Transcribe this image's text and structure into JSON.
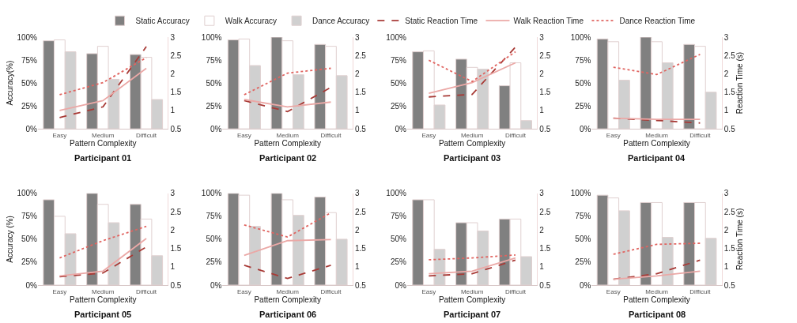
{
  "chart_data": [
    {
      "type": "bar",
      "title": "Participant 01",
      "xlabel": "Pattern Complexity",
      "ylabel": "Accuracy(%)",
      "legend": "top",
      "categories": [
        "Easy",
        "Medium",
        "Difficult"
      ],
      "ylim": [
        0,
        100
      ],
      "yticks": [
        {
          "value": 0,
          "label": "0%"
        },
        {
          "value": 25,
          "label": "25%"
        },
        {
          "value": 50,
          "label": "50%"
        },
        {
          "value": 75,
          "label": "75%"
        },
        {
          "value": 100,
          "label": "100%"
        }
      ],
      "y2lim": [
        0.5,
        3
      ],
      "y2ticks": [
        0.5,
        1,
        1.5,
        2,
        2.5,
        3
      ],
      "series": [
        {
          "name": "Static Accuracy",
          "color": "#808080",
          "values": [
            96,
            82,
            81
          ]
        },
        {
          "name": "Walk Accuracy",
          "color": "#ffffff",
          "values": [
            97,
            90,
            78
          ]
        },
        {
          "name": "Dance Accuracy",
          "color": "#d0d0d0",
          "values": [
            84,
            54,
            32
          ]
        },
        {
          "name": "Static Reaction Time",
          "type": "line",
          "axis": "y2",
          "line_style": "dashed",
          "color": "#a83a36",
          "values": [
            0.81,
            1.1,
            2.74
          ]
        },
        {
          "name": "Walk Reaction Time",
          "type": "line",
          "axis": "y2",
          "line_style": "solid",
          "color": "#eba8a6",
          "values": [
            1.0,
            1.27,
            2.15
          ]
        },
        {
          "name": "Dance Reaction Time",
          "type": "line",
          "axis": "y2",
          "line_style": "dotted",
          "color": "#e06460",
          "values": [
            1.43,
            1.76,
            2.44
          ]
        }
      ]
    },
    {
      "type": "bar",
      "title": "Participant 02",
      "xlabel": "Pattern Complexity",
      "categories": [
        "Easy",
        "Medium",
        "Difficult"
      ],
      "ylim": [
        0,
        100
      ],
      "yticks": [
        {
          "value": 0,
          "label": "0%"
        },
        {
          "value": 25,
          "label": "25%"
        },
        {
          "value": 50,
          "label": "50%"
        },
        {
          "value": 75,
          "label": "75%"
        },
        {
          "value": 100,
          "label": "100%"
        }
      ],
      "y2lim": [
        0.5,
        3
      ],
      "y2ticks": [
        0.5,
        1,
        1.5,
        2,
        2.5,
        3
      ],
      "series": [
        {
          "color": "#808080",
          "values": [
            97,
            100,
            92
          ]
        },
        {
          "color": "#ffffff",
          "values": [
            98,
            96,
            90
          ]
        },
        {
          "color": "#d0d0d0",
          "values": [
            69,
            59,
            58
          ]
        },
        {
          "type": "line",
          "axis": "y2",
          "line_style": "dashed",
          "color": "#a83a36",
          "values": [
            1.27,
            0.97,
            1.63
          ]
        },
        {
          "type": "line",
          "axis": "y2",
          "line_style": "solid",
          "color": "#eba8a6",
          "values": [
            1.3,
            1.1,
            1.23
          ]
        },
        {
          "type": "line",
          "axis": "y2",
          "line_style": "dotted",
          "color": "#e06460",
          "values": [
            1.43,
            2.02,
            2.15
          ]
        }
      ]
    },
    {
      "type": "bar",
      "title": "Participant 03",
      "xlabel": "Pattern Complexity",
      "categories": [
        "Easy",
        "Medium",
        "Difficult"
      ],
      "ylim": [
        0,
        100
      ],
      "yticks": [
        {
          "value": 0,
          "label": "0%"
        },
        {
          "value": 25,
          "label": "25%"
        },
        {
          "value": 50,
          "label": "50%"
        },
        {
          "value": 75,
          "label": "75%"
        },
        {
          "value": 100,
          "label": "100%"
        }
      ],
      "y2lim": [
        0.5,
        3
      ],
      "y2ticks": [
        0.5,
        1,
        1.5,
        2,
        2.5,
        3
      ],
      "series": [
        {
          "color": "#808080",
          "values": [
            84,
            76,
            47
          ]
        },
        {
          "color": "#ffffff",
          "values": [
            85,
            67,
            72
          ]
        },
        {
          "color": "#d0d0d0",
          "values": [
            26,
            65,
            9
          ]
        },
        {
          "type": "line",
          "axis": "y2",
          "line_style": "dashed",
          "color": "#a83a36",
          "values": [
            1.37,
            1.44,
            2.73
          ]
        },
        {
          "type": "line",
          "axis": "y2",
          "line_style": "solid",
          "color": "#eba8a6",
          "values": [
            1.47,
            1.76,
            2.3
          ]
        },
        {
          "type": "line",
          "axis": "y2",
          "line_style": "dotted",
          "color": "#e06460",
          "values": [
            2.37,
            1.79,
            2.6
          ]
        }
      ]
    },
    {
      "type": "bar",
      "title": "Participant 04",
      "xlabel": "Pattern Complexity",
      "y2label": "Reaction Time (s)",
      "categories": [
        "Easy",
        "Medium",
        "Difficult"
      ],
      "ylim": [
        0,
        100
      ],
      "yticks": [
        {
          "value": 0,
          "label": "0%"
        },
        {
          "value": 25,
          "label": "25%"
        },
        {
          "value": 50,
          "label": "50%"
        },
        {
          "value": 75,
          "label": "75%"
        },
        {
          "value": 100,
          "label": "100%"
        }
      ],
      "y2lim": [
        0.5,
        3
      ],
      "y2ticks": [
        0.5,
        1,
        1.5,
        2,
        2.5,
        3
      ],
      "series": [
        {
          "color": "#808080",
          "values": [
            98,
            100,
            92
          ]
        },
        {
          "color": "#ffffff",
          "values": [
            95,
            95,
            90
          ]
        },
        {
          "color": "#d0d0d0",
          "values": [
            53,
            72,
            40
          ]
        },
        {
          "type": "line",
          "axis": "y2",
          "line_style": "dashed",
          "color": "#a83a36",
          "values": [
            0.79,
            0.73,
            0.66
          ]
        },
        {
          "type": "line",
          "axis": "y2",
          "line_style": "solid",
          "color": "#eba8a6",
          "values": [
            0.79,
            0.76,
            0.76
          ]
        },
        {
          "type": "line",
          "axis": "y2",
          "line_style": "dotted",
          "color": "#e06460",
          "values": [
            2.18,
            1.98,
            2.53
          ]
        }
      ]
    },
    {
      "type": "bar",
      "title": "Participant 05",
      "xlabel": "Pattern Complexity",
      "ylabel": "Accuracy (%)",
      "categories": [
        "Easy",
        "Medium",
        "Difficult"
      ],
      "ylim": [
        0,
        100
      ],
      "yticks": [
        {
          "value": 0,
          "label": "0%"
        },
        {
          "value": 25,
          "label": "25%"
        },
        {
          "value": 50,
          "label": "50%"
        },
        {
          "value": 75,
          "label": "75%"
        },
        {
          "value": 100,
          "label": "100%"
        }
      ],
      "y2lim": [
        0.5,
        3
      ],
      "y2ticks": [
        0.5,
        1,
        1.5,
        2,
        2.5,
        3
      ],
      "series": [
        {
          "color": "#808080",
          "values": [
            93,
            100,
            88
          ]
        },
        {
          "color": "#ffffff",
          "values": [
            75,
            88,
            72
          ]
        },
        {
          "color": "#d0d0d0",
          "values": [
            56,
            68,
            32
          ]
        },
        {
          "type": "line",
          "axis": "y2",
          "line_style": "dashed",
          "color": "#a83a36",
          "values": [
            0.73,
            0.83,
            1.54
          ]
        },
        {
          "type": "line",
          "axis": "y2",
          "line_style": "solid",
          "color": "#eba8a6",
          "values": [
            0.75,
            0.88,
            1.77
          ]
        },
        {
          "type": "line",
          "axis": "y2",
          "line_style": "dotted",
          "color": "#e06460",
          "values": [
            1.24,
            1.71,
            2.1
          ]
        }
      ]
    },
    {
      "type": "bar",
      "title": "Participant 06",
      "xlabel": "Pattern Complexity",
      "categories": [
        "Easy",
        "Medium",
        "Difficult"
      ],
      "ylim": [
        0,
        100
      ],
      "yticks": [
        {
          "value": 0,
          "label": "0%"
        },
        {
          "value": 25,
          "label": "25%"
        },
        {
          "value": 50,
          "label": "50%"
        },
        {
          "value": 75,
          "label": "75%"
        },
        {
          "value": 100,
          "label": "100%"
        }
      ],
      "y2lim": [
        0.5,
        3
      ],
      "y2ticks": [
        0.5,
        1,
        1.5,
        2,
        2.5,
        3
      ],
      "series": [
        {
          "color": "#808080",
          "values": [
            100,
            100,
            96
          ]
        },
        {
          "color": "#ffffff",
          "values": [
            98,
            93,
            79
          ]
        },
        {
          "color": "#d0d0d0",
          "values": [
            64,
            76,
            50
          ]
        },
        {
          "type": "line",
          "axis": "y2",
          "line_style": "dashed",
          "color": "#a83a36",
          "values": [
            1.04,
            0.68,
            1.04
          ]
        },
        {
          "type": "line",
          "axis": "y2",
          "line_style": "solid",
          "color": "#eba8a6",
          "values": [
            1.31,
            1.71,
            1.74
          ]
        },
        {
          "type": "line",
          "axis": "y2",
          "line_style": "dotted",
          "color": "#e06460",
          "values": [
            2.14,
            1.81,
            2.47
          ]
        }
      ]
    },
    {
      "type": "bar",
      "title": "Participant 07",
      "xlabel": "Pattern Complexity",
      "categories": [
        "Easy",
        "Medium",
        "Difficult"
      ],
      "ylim": [
        0,
        100
      ],
      "yticks": [
        {
          "value": 0,
          "label": "0%"
        },
        {
          "value": 25,
          "label": "25%"
        },
        {
          "value": 50,
          "label": "50%"
        },
        {
          "value": 75,
          "label": "75%"
        },
        {
          "value": 100,
          "label": "100%"
        }
      ],
      "y2lim": [
        0.5,
        3
      ],
      "y2ticks": [
        0.5,
        1,
        1.5,
        2,
        2.5,
        3
      ],
      "series": [
        {
          "color": "#808080",
          "values": [
            93,
            68,
            72
          ]
        },
        {
          "color": "#ffffff",
          "values": [
            93,
            68,
            72
          ]
        },
        {
          "color": "#d0d0d0",
          "values": [
            39,
            59,
            31
          ]
        },
        {
          "type": "line",
          "axis": "y2",
          "line_style": "dashed",
          "color": "#a83a36",
          "values": [
            0.75,
            0.81,
            1.18
          ]
        },
        {
          "type": "line",
          "axis": "y2",
          "line_style": "solid",
          "color": "#eba8a6",
          "values": [
            0.81,
            0.88,
            1.24
          ]
        },
        {
          "type": "line",
          "axis": "y2",
          "line_style": "dotted",
          "color": "#e06460",
          "values": [
            1.19,
            1.24,
            1.32
          ]
        }
      ]
    },
    {
      "type": "bar",
      "title": "Participant 08",
      "xlabel": "Pattern Complexity",
      "y2label": "Reaction Time (s)",
      "categories": [
        "Easy",
        "Medium",
        "Difficult"
      ],
      "ylim": [
        0,
        100
      ],
      "yticks": [
        {
          "value": 0,
          "label": "0%"
        },
        {
          "value": 25,
          "label": "25%"
        },
        {
          "value": 50,
          "label": "50%"
        },
        {
          "value": 75,
          "label": "75%"
        },
        {
          "value": 100,
          "label": "100%"
        }
      ],
      "y2lim": [
        0.5,
        3
      ],
      "y2ticks": [
        0.5,
        1,
        1.5,
        2,
        2.5,
        3
      ],
      "series": [
        {
          "color": "#808080",
          "values": [
            98,
            90,
            90
          ]
        },
        {
          "color": "#ffffff",
          "values": [
            95,
            90,
            90
          ]
        },
        {
          "color": "#d0d0d0",
          "values": [
            81,
            52,
            51
          ]
        },
        {
          "type": "line",
          "axis": "y2",
          "line_style": "dashed",
          "color": "#a83a36",
          "values": [
            0.66,
            0.81,
            1.18
          ]
        },
        {
          "type": "line",
          "axis": "y2",
          "line_style": "solid",
          "color": "#eba8a6",
          "values": [
            0.66,
            0.75,
            0.88
          ]
        },
        {
          "type": "line",
          "axis": "y2",
          "line_style": "dotted",
          "color": "#e06460",
          "values": [
            1.34,
            1.61,
            1.64
          ]
        }
      ]
    }
  ]
}
